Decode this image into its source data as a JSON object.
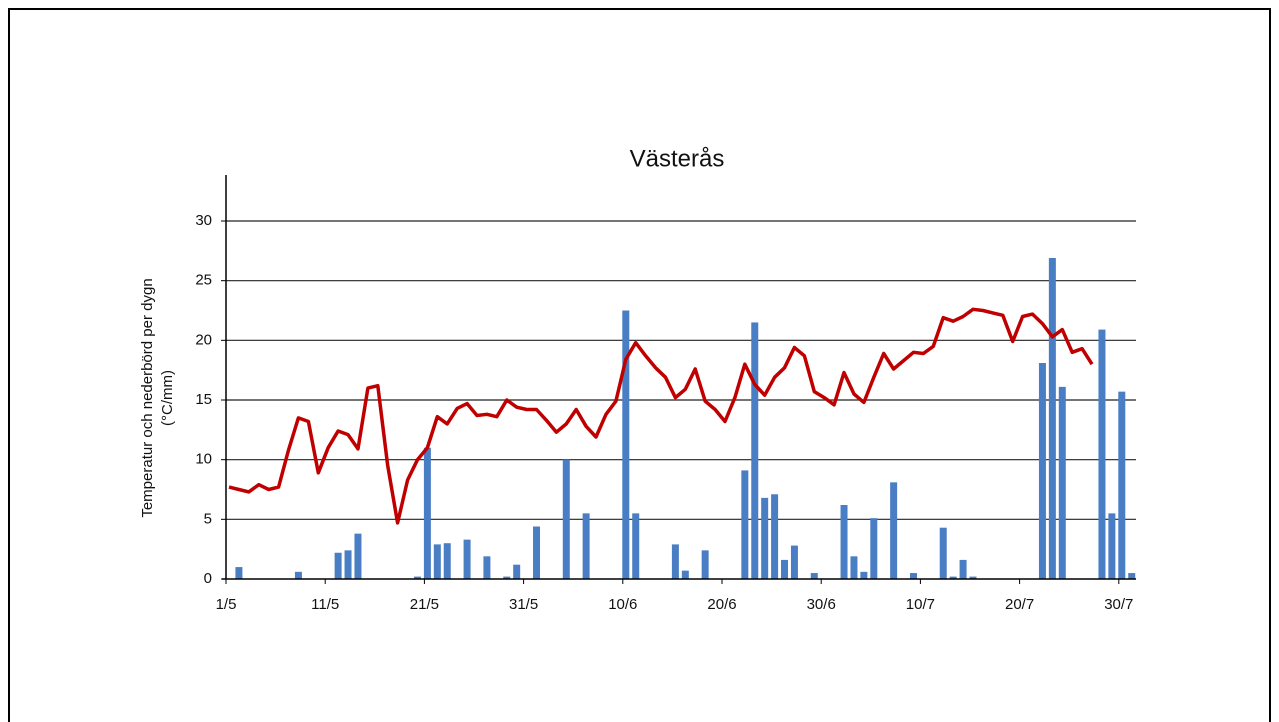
{
  "chart_data": {
    "type": "bar",
    "title": "Västerås",
    "ylabel": [
      "Temperatur och nederbörd per dygn",
      "(°C/mm)"
    ],
    "categories": [
      "1/5",
      null,
      null,
      null,
      null,
      null,
      null,
      null,
      null,
      null,
      "11/5",
      null,
      null,
      null,
      null,
      null,
      null,
      null,
      null,
      null,
      "21/5",
      null,
      null,
      null,
      null,
      null,
      null,
      null,
      null,
      null,
      "31/5",
      null,
      null,
      null,
      null,
      null,
      null,
      null,
      null,
      null,
      "10/6",
      null,
      null,
      null,
      null,
      null,
      null,
      null,
      null,
      null,
      "20/6",
      null,
      null,
      null,
      null,
      null,
      null,
      null,
      null,
      null,
      "30/6",
      null,
      null,
      null,
      null,
      null,
      null,
      null,
      null,
      null,
      "10/7",
      null,
      null,
      null,
      null,
      null,
      null,
      null,
      null,
      null,
      "20/7",
      null,
      null,
      null,
      null,
      null,
      null,
      null,
      null,
      null,
      "30/7",
      null
    ],
    "ylim": [
      0,
      30
    ],
    "yticks": [
      0,
      5,
      10,
      15,
      20,
      25,
      30
    ],
    "grid": true,
    "series": [
      {
        "type": "bar",
        "color": "#4a7ec4",
        "values": [
          0,
          1.0,
          0,
          0,
          0,
          0,
          0,
          0.6,
          0,
          0,
          0,
          2.2,
          2.4,
          3.8,
          0,
          0,
          0,
          0,
          0,
          0.2,
          11.0,
          2.9,
          3.0,
          0,
          3.3,
          0,
          1.9,
          0,
          0.2,
          1.2,
          0,
          4.4,
          0,
          0,
          10.0,
          0,
          5.5,
          0,
          0,
          0,
          22.5,
          5.5,
          0,
          0,
          0,
          2.9,
          0.7,
          0,
          2.4,
          0,
          0,
          0,
          9.1,
          21.5,
          6.8,
          7.1,
          1.6,
          2.8,
          0,
          0.5,
          0,
          0,
          6.2,
          1.9,
          0.6,
          5.1,
          0,
          8.1,
          0,
          0.5,
          0,
          0,
          4.3,
          0.2,
          1.6,
          0.2,
          0,
          0,
          0,
          0,
          0,
          0,
          18.1,
          26.9,
          16.1,
          0,
          0,
          0,
          20.9,
          5.5,
          15.7,
          0.5
        ]
      },
      {
        "type": "line",
        "color": "#c00000",
        "values": [
          7.7,
          7.5,
          7.3,
          7.9,
          7.5,
          7.7,
          10.8,
          13.5,
          13.2,
          8.9,
          11.0,
          12.4,
          12.1,
          10.9,
          16.0,
          16.2,
          9.5,
          4.7,
          8.3,
          10.0,
          11.0,
          13.6,
          13.0,
          14.3,
          14.7,
          13.7,
          13.8,
          13.6,
          15.0,
          14.4,
          14.2,
          14.2,
          13.3,
          12.3,
          13.0,
          14.2,
          12.8,
          11.9,
          13.8,
          14.9,
          18.4,
          19.8,
          18.7,
          17.7,
          16.9,
          15.2,
          15.9,
          17.6,
          14.9,
          14.2,
          13.2,
          15.2,
          18.0,
          16.3,
          15.4,
          16.9,
          17.7,
          19.4,
          18.7,
          15.7,
          15.2,
          14.6,
          17.3,
          15.5,
          14.8,
          16.9,
          18.9,
          17.6,
          18.3,
          19.0,
          18.9,
          19.5,
          21.9,
          21.6,
          22.0,
          22.6,
          22.5,
          22.3,
          22.1,
          19.9,
          22.0,
          22.2,
          21.4,
          20.3,
          20.9,
          19.0,
          19.3,
          18.0,
          null,
          null,
          null,
          null
        ]
      }
    ]
  }
}
